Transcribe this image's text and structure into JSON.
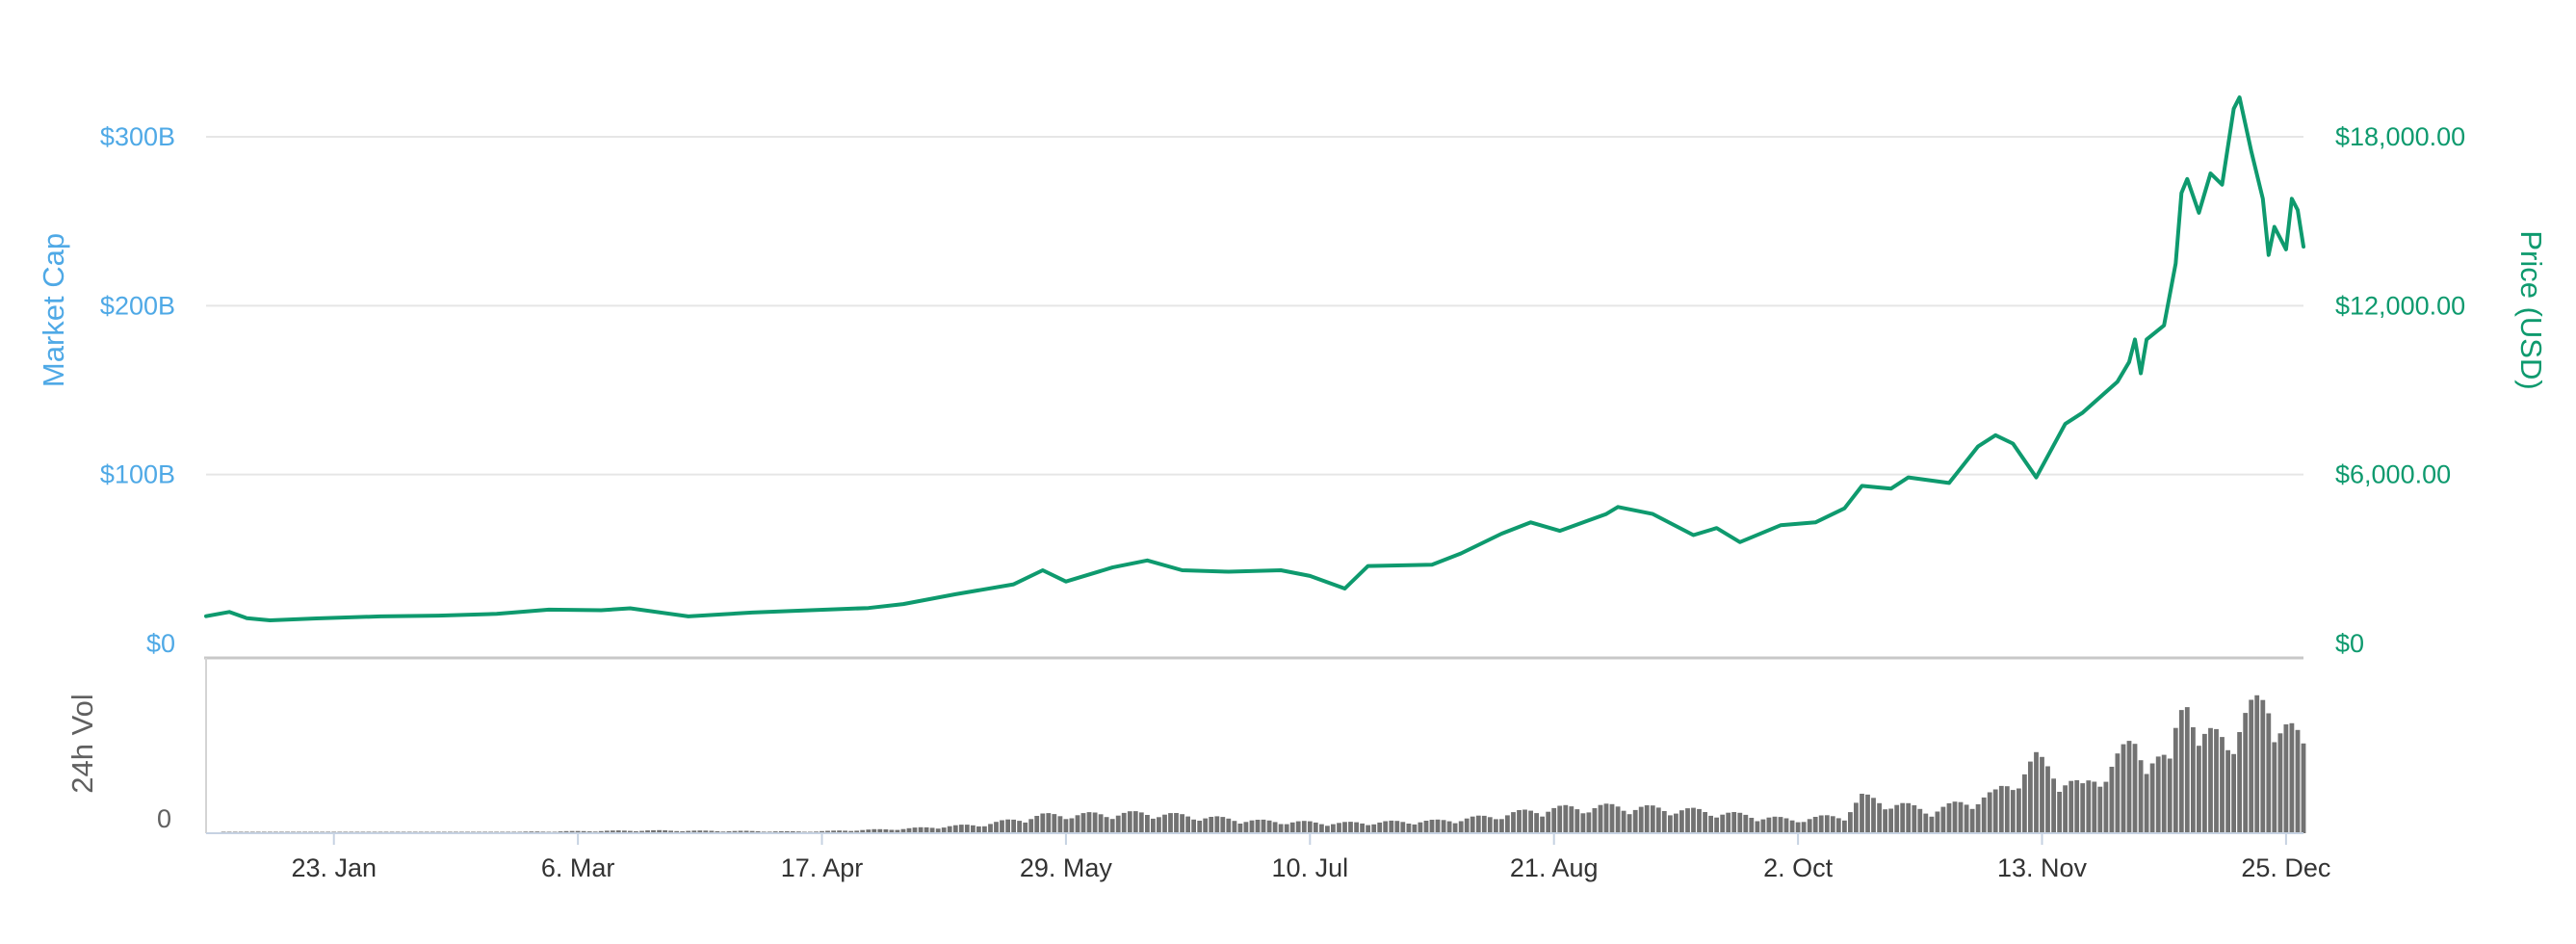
{
  "chart_data": {
    "type": "line",
    "left_axis": {
      "title": "Market Cap",
      "ticks": [
        "$0",
        "$100B",
        "$200B",
        "$300B"
      ],
      "range": [
        0,
        300000000000
      ],
      "color": "#4fa9e6"
    },
    "right_axis": {
      "title": "Price (USD)",
      "ticks": [
        "$0",
        "$6,000.00",
        "$12,000.00",
        "$18,000.00"
      ],
      "range": [
        0,
        18000
      ],
      "color": "#0e9a6e"
    },
    "volume_axis": {
      "title": "24h Vol",
      "ticks": [
        "0"
      ]
    },
    "x_axis": {
      "range": [
        "2017-01-01",
        "2017-12-28"
      ],
      "ticks": [
        {
          "label": "23. Jan",
          "date": "2017-01-23"
        },
        {
          "label": "6. Mar",
          "date": "2017-03-06"
        },
        {
          "label": "17. Apr",
          "date": "2017-04-17"
        },
        {
          "label": "29. May",
          "date": "2017-05-29"
        },
        {
          "label": "10. Jul",
          "date": "2017-07-10"
        },
        {
          "label": "21. Aug",
          "date": "2017-08-21"
        },
        {
          "label": "2. Oct",
          "date": "2017-10-02"
        },
        {
          "label": "13. Nov",
          "date": "2017-11-13"
        },
        {
          "label": "25. Dec",
          "date": "2017-12-25"
        }
      ]
    },
    "grid": true,
    "legend": "none",
    "series": [
      {
        "color": "#0e9a6e",
        "points": [
          [
            "2017-01-01",
            970
          ],
          [
            "2017-01-05",
            1120
          ],
          [
            "2017-01-08",
            900
          ],
          [
            "2017-01-12",
            820
          ],
          [
            "2017-01-20",
            890
          ],
          [
            "2017-01-31",
            960
          ],
          [
            "2017-02-10",
            990
          ],
          [
            "2017-02-20",
            1050
          ],
          [
            "2017-03-01",
            1200
          ],
          [
            "2017-03-10",
            1180
          ],
          [
            "2017-03-15",
            1250
          ],
          [
            "2017-03-25",
            960
          ],
          [
            "2017-04-05",
            1100
          ],
          [
            "2017-04-15",
            1180
          ],
          [
            "2017-04-25",
            1260
          ],
          [
            "2017-05-01",
            1400
          ],
          [
            "2017-05-10",
            1750
          ],
          [
            "2017-05-20",
            2100
          ],
          [
            "2017-05-25",
            2600
          ],
          [
            "2017-05-29",
            2200
          ],
          [
            "2017-06-06",
            2700
          ],
          [
            "2017-06-12",
            2950
          ],
          [
            "2017-06-18",
            2600
          ],
          [
            "2017-06-26",
            2550
          ],
          [
            "2017-07-05",
            2600
          ],
          [
            "2017-07-10",
            2400
          ],
          [
            "2017-07-16",
            1950
          ],
          [
            "2017-07-20",
            2750
          ],
          [
            "2017-07-31",
            2800
          ],
          [
            "2017-08-05",
            3200
          ],
          [
            "2017-08-12",
            3900
          ],
          [
            "2017-08-17",
            4300
          ],
          [
            "2017-08-22",
            4000
          ],
          [
            "2017-08-30",
            4600
          ],
          [
            "2017-09-01",
            4850
          ],
          [
            "2017-09-07",
            4600
          ],
          [
            "2017-09-14",
            3850
          ],
          [
            "2017-09-18",
            4100
          ],
          [
            "2017-09-22",
            3600
          ],
          [
            "2017-09-29",
            4200
          ],
          [
            "2017-10-05",
            4300
          ],
          [
            "2017-10-10",
            4800
          ],
          [
            "2017-10-13",
            5600
          ],
          [
            "2017-10-18",
            5500
          ],
          [
            "2017-10-21",
            5900
          ],
          [
            "2017-10-28",
            5700
          ],
          [
            "2017-11-02",
            7000
          ],
          [
            "2017-11-05",
            7400
          ],
          [
            "2017-11-08",
            7100
          ],
          [
            "2017-11-12",
            5900
          ],
          [
            "2017-11-17",
            7800
          ],
          [
            "2017-11-20",
            8200
          ],
          [
            "2017-11-26",
            9300
          ],
          [
            "2017-11-28",
            10000
          ],
          [
            "2017-11-29",
            10800
          ],
          [
            "2017-11-30",
            9600
          ],
          [
            "2017-12-01",
            10800
          ],
          [
            "2017-12-04",
            11300
          ],
          [
            "2017-12-06",
            13500
          ],
          [
            "2017-12-07",
            16000
          ],
          [
            "2017-12-08",
            16500
          ],
          [
            "2017-12-10",
            15300
          ],
          [
            "2017-12-12",
            16700
          ],
          [
            "2017-12-14",
            16300
          ],
          [
            "2017-12-16",
            19000
          ],
          [
            "2017-12-17",
            19400
          ],
          [
            "2017-12-19",
            17500
          ],
          [
            "2017-12-21",
            15800
          ],
          [
            "2017-12-22",
            13800
          ],
          [
            "2017-12-23",
            14800
          ],
          [
            "2017-12-25",
            14000
          ],
          [
            "2017-12-26",
            15800
          ],
          [
            "2017-12-27",
            15400
          ],
          [
            "2017-12-28",
            14100
          ]
        ]
      }
    ],
    "volume": {
      "color": "#727272",
      "points": [
        [
          "2017-01-15",
          0.08
        ],
        [
          "2017-02-15",
          0.08
        ],
        [
          "2017-03-18",
          0.25
        ],
        [
          "2017-04-15",
          0.15
        ],
        [
          "2017-05-01",
          0.4
        ],
        [
          "2017-05-15",
          0.8
        ],
        [
          "2017-05-25",
          1.6
        ],
        [
          "2017-06-12",
          1.8
        ],
        [
          "2017-07-01",
          1.1
        ],
        [
          "2017-07-15",
          0.9
        ],
        [
          "2017-08-01",
          1.1
        ],
        [
          "2017-08-10",
          1.5
        ],
        [
          "2017-08-20",
          2.2
        ],
        [
          "2017-09-01",
          2.4
        ],
        [
          "2017-09-15",
          2.0
        ],
        [
          "2017-10-01",
          1.2
        ],
        [
          "2017-10-10",
          1.6
        ],
        [
          "2017-10-13",
          3.2
        ],
        [
          "2017-10-25",
          2.0
        ],
        [
          "2017-11-05",
          3.5
        ],
        [
          "2017-11-12",
          6.5
        ],
        [
          "2017-11-20",
          4.0
        ],
        [
          "2017-11-29",
          8.0
        ],
        [
          "2017-12-05",
          6.0
        ],
        [
          "2017-12-08",
          15.0
        ],
        [
          "2017-12-10",
          8.0
        ],
        [
          "2017-12-15",
          9.0
        ],
        [
          "2017-12-22",
          12.0
        ],
        [
          "2017-12-28",
          7.5
        ]
      ]
    }
  }
}
